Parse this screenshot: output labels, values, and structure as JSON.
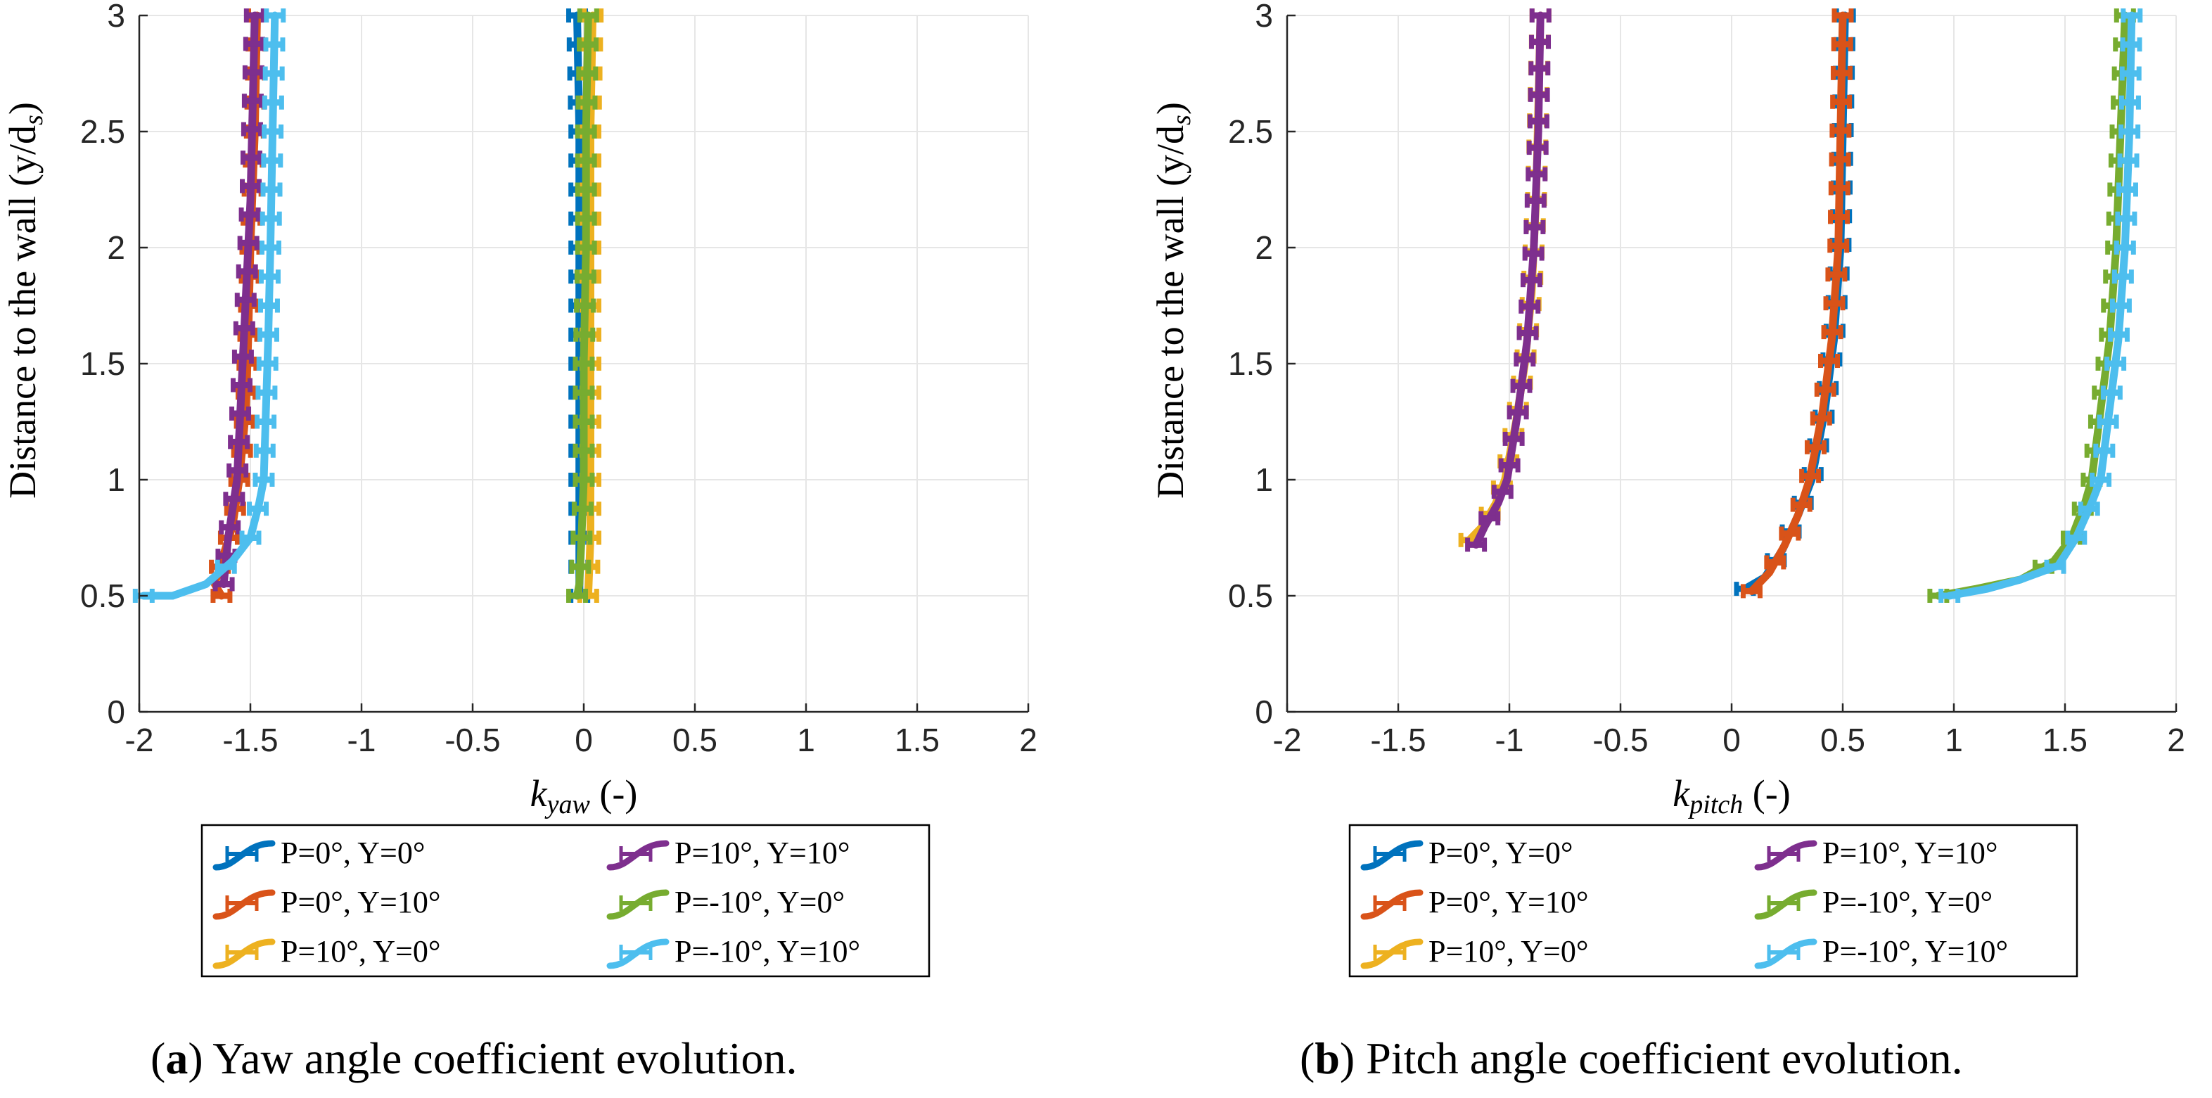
{
  "chart_data": [
    {
      "type": "line",
      "panel": "a",
      "xlabel_main": "k",
      "xlabel_sub": "yaw",
      "xlabel_unit": "(-)",
      "ylabel": "Distance to the wall (y/d",
      "ylabel_sub": "s",
      "ylabel_close": ")",
      "xlim": [
        -2,
        2
      ],
      "ylim": [
        0,
        3
      ],
      "xticks": [
        -2,
        -1.5,
        -1,
        -0.5,
        0,
        0.5,
        1,
        1.5,
        2
      ],
      "xtick_labels": [
        "-2",
        "-1.5",
        "-1",
        "-0.5",
        "0",
        "0.5",
        "1",
        "1.5",
        "2"
      ],
      "yticks": [
        0,
        0.5,
        1,
        1.5,
        2,
        2.5,
        3
      ],
      "ytick_labels": [
        "0",
        "0.5",
        "1",
        "1.5",
        "2",
        "2.5",
        "3"
      ],
      "grid": true,
      "legend_position": "below-center",
      "caption_letter": "(a)",
      "caption_text": "Yaw angle coefficient evolution.",
      "series": [
        {
          "name": "P=0°, Y=0°",
          "color": "#0072BD",
          "points": [
            [
              -0.02,
              0.5
            ],
            [
              -0.02,
              0.6
            ],
            [
              -0.02,
              0.75
            ],
            [
              -0.02,
              1.0
            ],
            [
              -0.02,
              1.5
            ],
            [
              -0.02,
              2.0
            ],
            [
              -0.02,
              2.5
            ],
            [
              -0.03,
              3.0
            ]
          ]
        },
        {
          "name": "P=0°, Y=10°",
          "color": "#D95319",
          "points": [
            [
              -1.63,
              0.5
            ],
            [
              -1.66,
              0.55
            ],
            [
              -1.63,
              0.65
            ],
            [
              -1.58,
              0.8
            ],
            [
              -1.55,
              1.0
            ],
            [
              -1.52,
              1.3
            ],
            [
              -1.51,
              1.6
            ],
            [
              -1.5,
              2.0
            ],
            [
              -1.48,
              2.5
            ],
            [
              -1.47,
              3.0
            ]
          ]
        },
        {
          "name": "P=10°, Y=0°",
          "color": "#EDB120",
          "points": [
            [
              0.02,
              0.5
            ],
            [
              0.03,
              0.75
            ],
            [
              0.03,
              1.0
            ],
            [
              0.03,
              1.5
            ],
            [
              0.03,
              2.0
            ],
            [
              0.03,
              2.5
            ],
            [
              0.04,
              3.0
            ]
          ]
        },
        {
          "name": "P=10°, Y=10°",
          "color": "#7E2F8E",
          "points": [
            [
              -1.62,
              0.55
            ],
            [
              -1.6,
              0.75
            ],
            [
              -1.56,
              1.0
            ],
            [
              -1.54,
              1.4
            ],
            [
              -1.52,
              1.8
            ],
            [
              -1.5,
              2.2
            ],
            [
              -1.49,
              2.6
            ],
            [
              -1.48,
              3.0
            ]
          ]
        },
        {
          "name": "P=-10°, Y=0°",
          "color": "#77AC30",
          "points": [
            [
              -0.03,
              0.5
            ],
            [
              -0.02,
              0.55
            ],
            [
              -0.01,
              0.75
            ],
            [
              0.0,
              1.0
            ],
            [
              0.0,
              1.5
            ],
            [
              0.01,
              2.0
            ],
            [
              0.01,
              2.5
            ],
            [
              0.02,
              3.0
            ]
          ]
        },
        {
          "name": "P=-10°, Y=10°",
          "color": "#4DBEEE",
          "points": [
            [
              -1.98,
              0.5
            ],
            [
              -1.85,
              0.5
            ],
            [
              -1.7,
              0.55
            ],
            [
              -1.58,
              0.65
            ],
            [
              -1.5,
              0.75
            ],
            [
              -1.46,
              0.9
            ],
            [
              -1.44,
              1.0
            ],
            [
              -1.43,
              1.3
            ],
            [
              -1.42,
              1.6
            ],
            [
              -1.41,
              2.0
            ],
            [
              -1.4,
              2.5
            ],
            [
              -1.39,
              3.0
            ]
          ]
        }
      ]
    },
    {
      "type": "line",
      "panel": "b",
      "xlabel_main": "k",
      "xlabel_sub": "pitch",
      "xlabel_unit": "(-)",
      "ylabel": "Distance to the wall (y/d",
      "ylabel_sub": "s",
      "ylabel_close": ")",
      "xlim": [
        -2,
        2
      ],
      "ylim": [
        0,
        3
      ],
      "xticks": [
        -2,
        -1.5,
        -1,
        -0.5,
        0,
        0.5,
        1,
        1.5,
        2
      ],
      "xtick_labels": [
        "-2",
        "-1.5",
        "-1",
        "-0.5",
        "0",
        "0.5",
        "1",
        "1.5",
        "2"
      ],
      "yticks": [
        0,
        0.5,
        1,
        1.5,
        2,
        2.5,
        3
      ],
      "ytick_labels": [
        "0",
        "0.5",
        "1",
        "1.5",
        "2",
        "2.5",
        "3"
      ],
      "grid": true,
      "legend_position": "below-center",
      "caption_letter": "(b)",
      "caption_text": "Pitch angle coefficient evolution.",
      "series": [
        {
          "name": "P=0°, Y=0°",
          "color": "#0072BD",
          "points": [
            [
              0.06,
              0.53
            ],
            [
              0.15,
              0.58
            ],
            [
              0.23,
              0.7
            ],
            [
              0.3,
              0.85
            ],
            [
              0.36,
              1.0
            ],
            [
              0.42,
              1.3
            ],
            [
              0.46,
              1.6
            ],
            [
              0.49,
              2.0
            ],
            [
              0.5,
              2.5
            ],
            [
              0.51,
              3.0
            ]
          ]
        },
        {
          "name": "P=0°, Y=10°",
          "color": "#D95319",
          "points": [
            [
              0.09,
              0.52
            ],
            [
              0.17,
              0.6
            ],
            [
              0.24,
              0.72
            ],
            [
              0.3,
              0.85
            ],
            [
              0.35,
              1.0
            ],
            [
              0.41,
              1.3
            ],
            [
              0.45,
              1.6
            ],
            [
              0.48,
              2.0
            ],
            [
              0.49,
              2.5
            ],
            [
              0.5,
              3.0
            ]
          ]
        },
        {
          "name": "P=10°, Y=0°",
          "color": "#EDB120",
          "points": [
            [
              -1.18,
              0.74
            ],
            [
              -1.12,
              0.8
            ],
            [
              -1.06,
              0.9
            ],
            [
              -1.02,
              1.0
            ],
            [
              -0.97,
              1.25
            ],
            [
              -0.93,
              1.5
            ],
            [
              -0.9,
              1.8
            ],
            [
              -0.88,
              2.2
            ],
            [
              -0.87,
              2.6
            ],
            [
              -0.86,
              3.0
            ]
          ]
        },
        {
          "name": "P=10°, Y=10°",
          "color": "#7E2F8E",
          "points": [
            [
              -1.15,
              0.72
            ],
            [
              -1.11,
              0.8
            ],
            [
              -1.05,
              0.9
            ],
            [
              -1.01,
              1.0
            ],
            [
              -0.96,
              1.3
            ],
            [
              -0.92,
              1.6
            ],
            [
              -0.89,
              2.0
            ],
            [
              -0.87,
              2.5
            ],
            [
              -0.86,
              3.0
            ]
          ]
        },
        {
          "name": "P=-10°, Y=0°",
          "color": "#77AC30",
          "points": [
            [
              0.93,
              0.5
            ],
            [
              1.1,
              0.53
            ],
            [
              1.3,
              0.57
            ],
            [
              1.45,
              0.65
            ],
            [
              1.53,
              0.75
            ],
            [
              1.59,
              0.9
            ],
            [
              1.62,
              1.0
            ],
            [
              1.66,
              1.3
            ],
            [
              1.7,
              1.6
            ],
            [
              1.73,
              2.0
            ],
            [
              1.75,
              2.5
            ],
            [
              1.77,
              3.0
            ]
          ]
        },
        {
          "name": "P=-10°, Y=10°",
          "color": "#4DBEEE",
          "points": [
            [
              0.98,
              0.5
            ],
            [
              1.15,
              0.53
            ],
            [
              1.3,
              0.57
            ],
            [
              1.47,
              0.63
            ],
            [
              1.55,
              0.75
            ],
            [
              1.62,
              0.9
            ],
            [
              1.66,
              1.0
            ],
            [
              1.7,
              1.3
            ],
            [
              1.74,
              1.6
            ],
            [
              1.77,
              2.0
            ],
            [
              1.79,
              2.5
            ],
            [
              1.8,
              3.0
            ]
          ]
        }
      ]
    }
  ]
}
